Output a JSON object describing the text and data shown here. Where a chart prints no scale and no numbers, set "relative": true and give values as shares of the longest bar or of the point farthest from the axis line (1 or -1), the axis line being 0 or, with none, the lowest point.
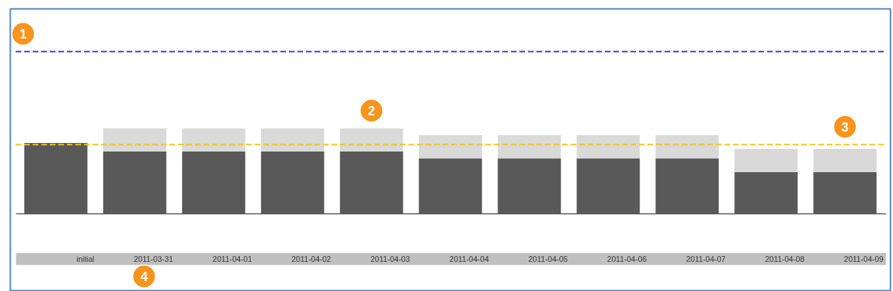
{
  "chart_data": {
    "type": "bar",
    "relative": true,
    "stacked": true,
    "categories": [
      "initial",
      "2011-03-31",
      "2011-04-01",
      "2011-04-02",
      "2011-04-03",
      "2011-04-04",
      "2011-04-05",
      "2011-04-06",
      "2011-04-07",
      "2011-04-08",
      "2011-04-09"
    ],
    "series": [
      {
        "color": "#595959",
        "values": [
          0.83,
          0.73,
          0.73,
          0.73,
          0.73,
          0.65,
          0.65,
          0.65,
          0.65,
          0.49,
          0.49
        ]
      },
      {
        "color": "#d9d9d9",
        "values": [
          null,
          0.27,
          0.27,
          0.27,
          0.27,
          0.27,
          0.27,
          0.27,
          0.27,
          0.27,
          0.27
        ]
      }
    ],
    "ref_lines": [
      {
        "axis": "y",
        "value": 1.9,
        "color": "#3333e0",
        "line_style": "dashed"
      },
      {
        "axis": "y",
        "value": 0.81,
        "color": "#f5c518",
        "line_style": "dashed"
      }
    ],
    "annotations": [
      {
        "text": "1",
        "y": 1.9
      },
      {
        "text": "2",
        "x": "2011-04-03",
        "y": 1.0
      },
      {
        "text": "3",
        "x": "2011-04-09",
        "y": 0.81
      },
      "4"
    ]
  }
}
